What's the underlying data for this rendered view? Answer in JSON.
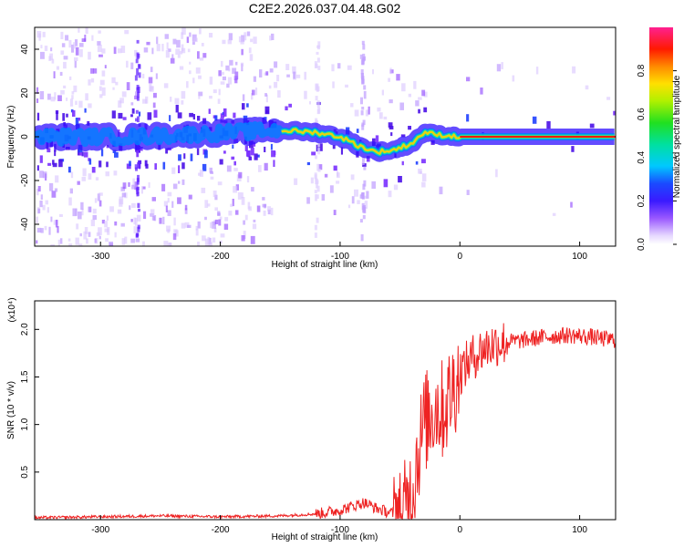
{
  "title": "C2E2.2026.037.04.48.G02",
  "chart_data": [
    {
      "type": "heatmap",
      "xlabel": "Height of straight line (km)",
      "ylabel": "Frequency (Hz)",
      "xlim": [
        -355,
        130
      ],
      "ylim": [
        -50,
        50
      ],
      "xticks": [
        -300,
        -200,
        -100,
        0,
        100
      ],
      "yticks": [
        -40,
        -20,
        0,
        20,
        40
      ],
      "colorbar": {
        "label": "Normalized spectral amplitude",
        "range": [
          0,
          1
        ],
        "ticks": [
          0.0,
          0.2,
          0.4,
          0.6,
          0.8
        ]
      },
      "signal_track": [
        {
          "x": -355,
          "y": 0
        },
        {
          "x": -300,
          "y": 0
        },
        {
          "x": -270,
          "y": 0
        },
        {
          "x": -150,
          "y": 3
        },
        {
          "x": -120,
          "y": 2
        },
        {
          "x": -100,
          "y": 0
        },
        {
          "x": -85,
          "y": -4
        },
        {
          "x": -70,
          "y": -7
        },
        {
          "x": -55,
          "y": -6
        },
        {
          "x": -40,
          "y": -3
        },
        {
          "x": -30,
          "y": 2
        },
        {
          "x": -20,
          "y": 1
        },
        {
          "x": 0,
          "y": 0
        },
        {
          "x": 130,
          "y": 0
        }
      ],
      "grid": false
    },
    {
      "type": "line",
      "xlabel": "Height of straight line (km)",
      "ylabel": "SNR (10 * v/v)",
      "y_multiplier": "(x10⁴)",
      "xlim": [
        -355,
        130
      ],
      "ylim": [
        0,
        2.3
      ],
      "xticks": [
        -300,
        -200,
        -100,
        0,
        100
      ],
      "yticks": [
        0.5,
        1.0,
        1.5,
        2.0
      ],
      "series": [
        {
          "color": "#ee2222",
          "x": [
            -355,
            -300,
            -250,
            -200,
            -150,
            -120,
            -100,
            -90,
            -80,
            -70,
            -60,
            -50,
            -45,
            -40,
            -35,
            -30,
            -25,
            -20,
            -15,
            -10,
            -5,
            0,
            10,
            20,
            30,
            40,
            50,
            60,
            70,
            80,
            90,
            100,
            110,
            120,
            130
          ],
          "values": [
            0.02,
            0.03,
            0.04,
            0.03,
            0.04,
            0.06,
            0.1,
            0.14,
            0.18,
            0.12,
            0.08,
            0.05,
            0.1,
            0.3,
            0.7,
            1.0,
            1.1,
            1.2,
            1.15,
            1.25,
            1.4,
            1.55,
            1.7,
            1.8,
            1.85,
            1.87,
            1.88,
            1.9,
            1.92,
            1.93,
            1.94,
            1.93,
            1.92,
            1.9,
            1.89
          ]
        }
      ],
      "grid": false
    }
  ]
}
